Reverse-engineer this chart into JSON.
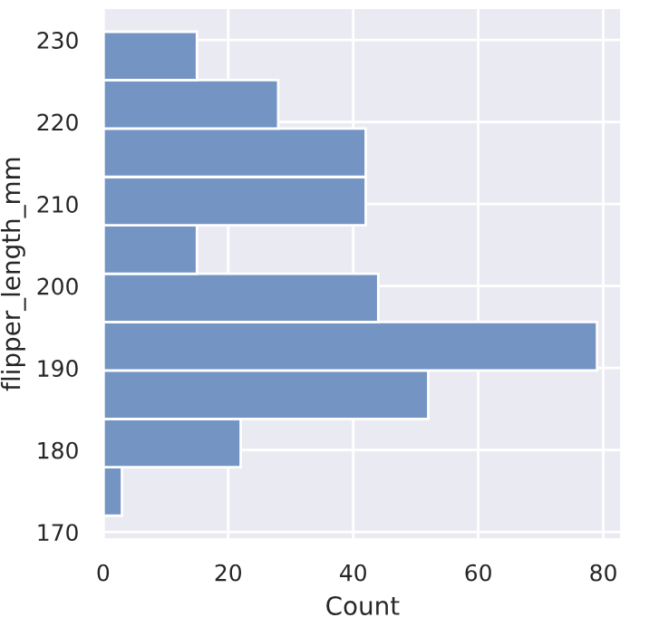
{
  "chart_data": {
    "type": "histogram",
    "orientation": "horizontal",
    "xlabel": "Count",
    "ylabel": "flipper_length_mm",
    "bins": [
      172,
      177.9,
      183.8,
      189.7,
      195.6,
      201.5,
      207.4,
      213.3,
      219.2,
      225.1,
      231
    ],
    "values": [
      3,
      22,
      52,
      79,
      44,
      15,
      42,
      42,
      28,
      15
    ],
    "color": "#7494c4",
    "xlim": [
      0,
      82.95
    ],
    "xticks": [
      0,
      20,
      40,
      60,
      80
    ],
    "ylim": [
      169.05,
      233.95
    ],
    "yticks": [
      170,
      180,
      190,
      200,
      210,
      220,
      230
    ],
    "grid": true
  }
}
